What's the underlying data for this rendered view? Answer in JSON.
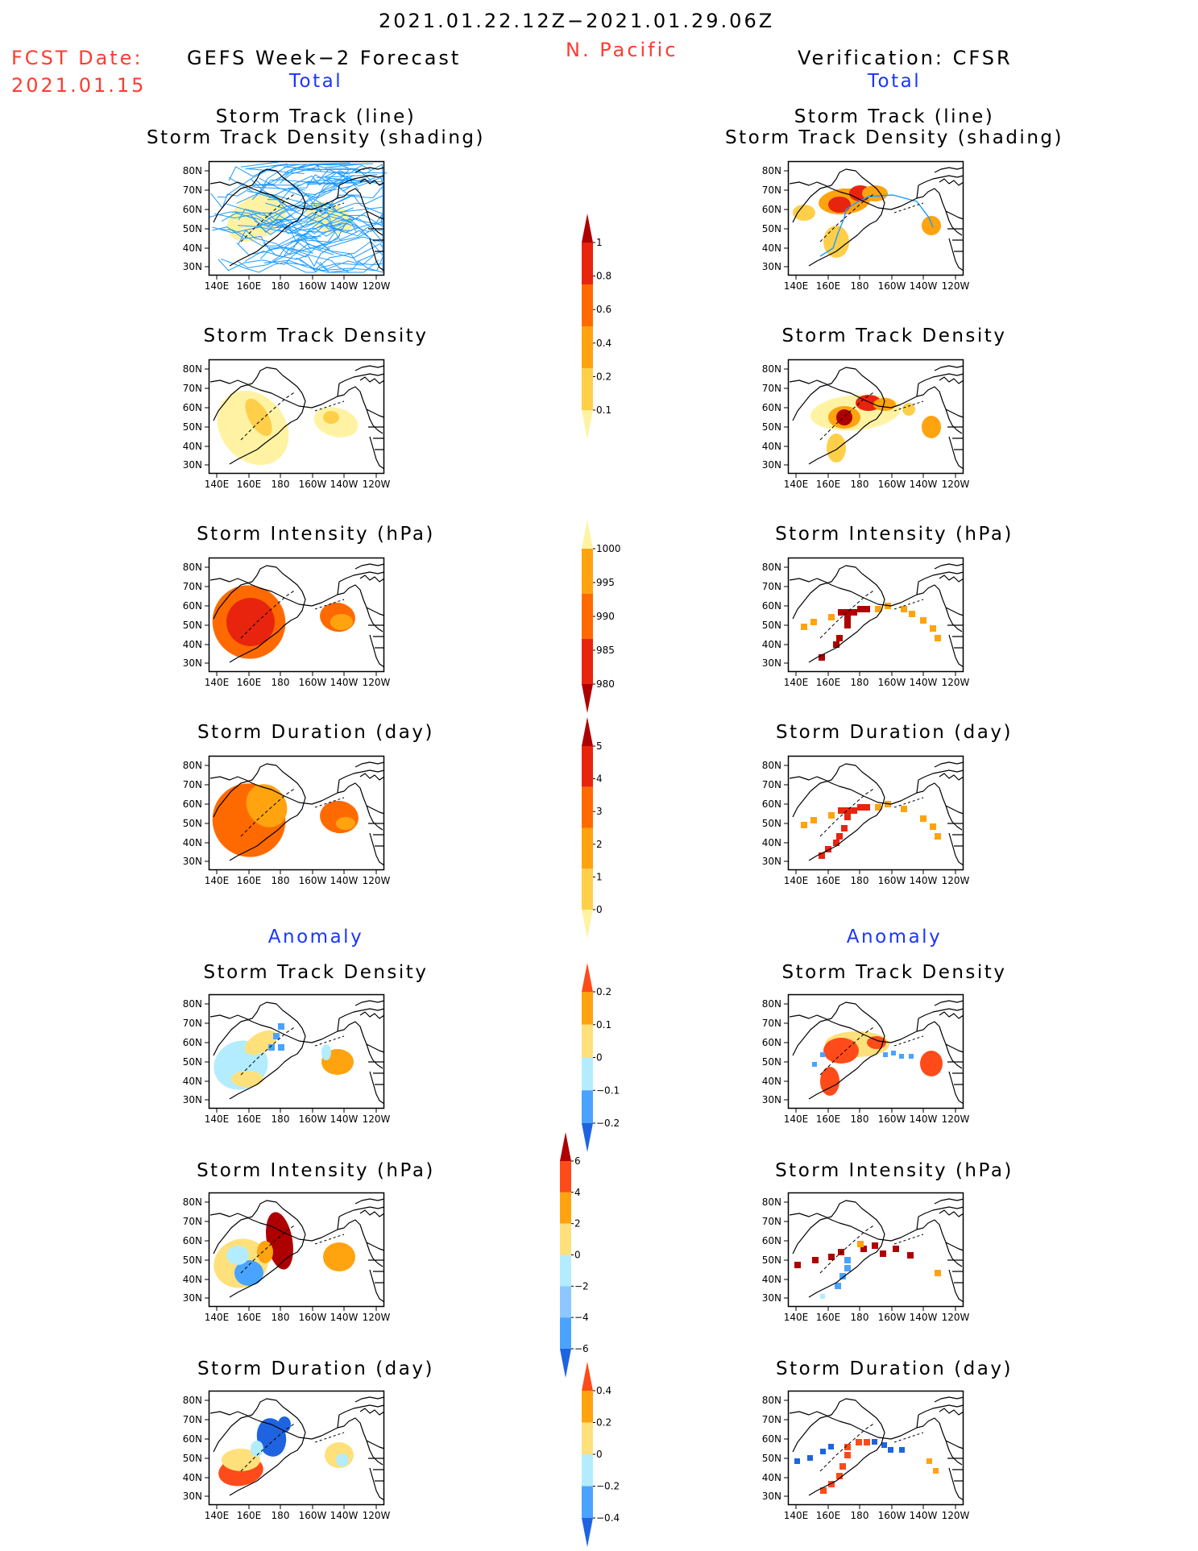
{
  "header": {
    "date_range": "2021.01.22.12Z−2021.01.29.06Z",
    "region": "N. Pacific",
    "fcst_label": "FCST Date:",
    "fcst_date": "2021.01.15",
    "left_title": "GEFS Week−2 Forecast",
    "right_title": "Verification: CFSR",
    "total_label": "Total",
    "anomaly_label": "Anomaly"
  },
  "panel_titles": {
    "track_line": "Storm Track (line)",
    "track_shading": "Storm Track Density (shading)",
    "density": "Storm Track Density",
    "intensity": "Storm Intensity (hPa)",
    "duration": "Storm Duration (day)"
  },
  "axes": {
    "lon_ticks": [
      "140E",
      "160E",
      "180",
      "160W",
      "140W",
      "120W"
    ],
    "lat_ticks": [
      "80N",
      "70N",
      "60N",
      "50N",
      "40N",
      "30N"
    ]
  },
  "colorbars": [
    {
      "id": "cb-density",
      "labels": [
        "1",
        "0.8",
        "0.6",
        "0.4",
        "0.2",
        "0.1"
      ],
      "colors": [
        "#ae0000",
        "#e8240f",
        "#ff6a00",
        "#ffa30f",
        "#ffcf4a",
        "#fff3a3"
      ]
    },
    {
      "id": "cb-intensity",
      "labels": [
        "1000",
        "995",
        "990",
        "985",
        "980"
      ],
      "colors": [
        "#fff3a3",
        "#ffa30f",
        "#ff6a00",
        "#e8240f",
        "#ae0000"
      ]
    },
    {
      "id": "cb-duration",
      "labels": [
        "5",
        "4",
        "3",
        "2",
        "1",
        "0"
      ],
      "colors": [
        "#ae0000",
        "#e8240f",
        "#ff6a00",
        "#ffa30f",
        "#ffcf4a",
        "#fff3a3"
      ]
    },
    {
      "id": "cb-anom-density",
      "labels": [
        "0.2",
        "0.1",
        "0",
        "−0.1",
        "−0.2"
      ],
      "colors": [
        "#ff4a1a",
        "#ffa30f",
        "#ffe07a",
        "#b3ecff",
        "#4aa3ff",
        "#1e64e0"
      ]
    },
    {
      "id": "cb-anom-intensity",
      "labels": [
        "6",
        "4",
        "2",
        "0",
        "−2",
        "−4",
        "−6"
      ],
      "colors": [
        "#ae0000",
        "#ff4a1a",
        "#ffa30f",
        "#ffe07a",
        "#b3ecff",
        "#8cc8ff",
        "#4aa3ff",
        "#1e64e0"
      ]
    },
    {
      "id": "cb-anom-duration",
      "labels": [
        "0.4",
        "0.2",
        "0",
        "−0.2",
        "−0.4"
      ],
      "colors": [
        "#ff4a1a",
        "#ffa30f",
        "#ffe07a",
        "#b3ecff",
        "#4aa3ff",
        "#1e64e0"
      ]
    }
  ],
  "colors": {
    "track_line": "#1e9bff",
    "title_red": "#ff3b30",
    "title_blue": "#1b35ff"
  }
}
